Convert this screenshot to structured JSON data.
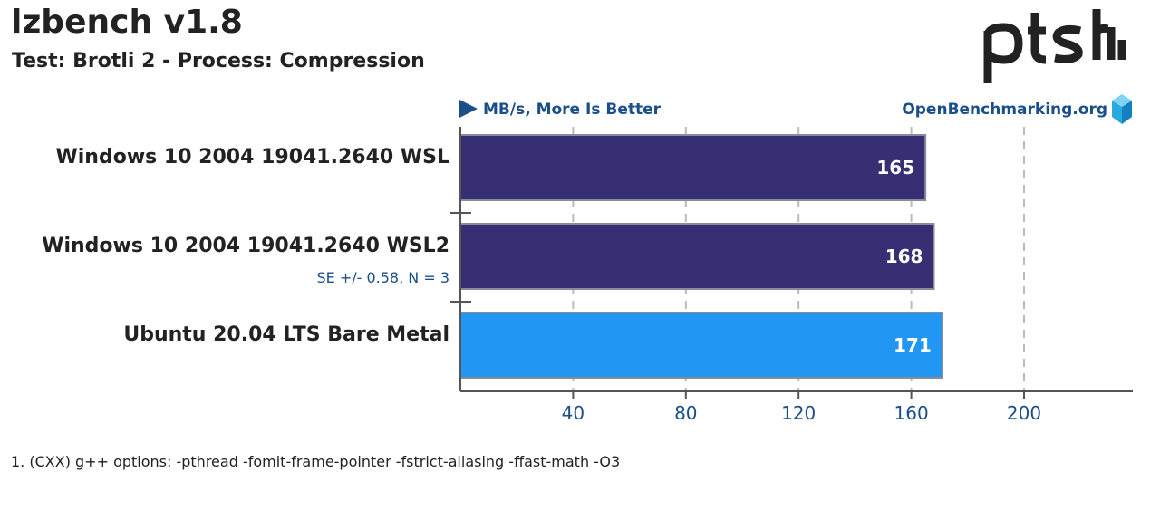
{
  "header": {
    "title": "lzbench v1.8",
    "subtitle": "Test: Brotli 2 - Process: Compression",
    "unit": "MB/s, More Is Better",
    "site": "OpenBenchmarking.org",
    "logo_text": "ptsh"
  },
  "chart_data": {
    "type": "bar",
    "orientation": "horizontal",
    "unit": "MB/s, More Is Better",
    "categories": [
      "Windows 10 2004 19041.2640 WSL",
      "Windows 10 2004 19041.2640 WSL2",
      "Ubuntu 20.04 LTS Bare Metal"
    ],
    "values": [
      165,
      168,
      171
    ],
    "value_labels": [
      "165",
      "168",
      "171"
    ],
    "notes": [
      "",
      "SE +/- 0.58, N = 3",
      ""
    ],
    "bar_colors": [
      "#372f73",
      "#372f73",
      "#2196f3"
    ],
    "xticks": [
      40,
      80,
      120,
      160,
      200
    ],
    "xlim": [
      0,
      240
    ],
    "grid": true
  },
  "footnote": "1. (CXX) g++ options: -pthread -fomit-frame-pointer -fstrict-aliasing -ffast-math -O3"
}
